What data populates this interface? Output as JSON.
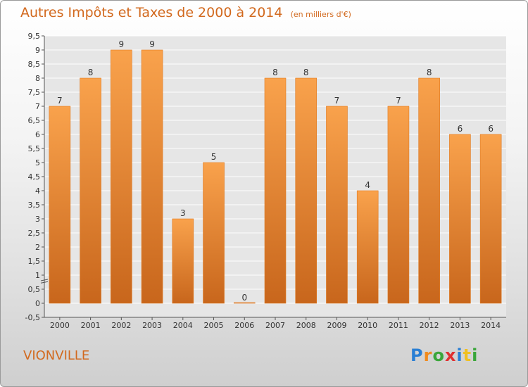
{
  "chart_data": {
    "type": "bar",
    "title": "Autres Impôts et Taxes de 2000 à 2014",
    "unit_note": "(en milliers d'€)",
    "categories": [
      "2000",
      "2001",
      "2002",
      "2003",
      "2004",
      "2005",
      "2006",
      "2007",
      "2008",
      "2009",
      "2010",
      "2011",
      "2012",
      "2013",
      "2014"
    ],
    "values": [
      7,
      8,
      9,
      9,
      3,
      5,
      0,
      8,
      8,
      7,
      4,
      7,
      8,
      6,
      6
    ],
    "ylim": [
      -0.5,
      9.5
    ],
    "yticks": [
      "-0,5",
      "0",
      "0,5",
      "1",
      "1,5",
      "2",
      "2,5",
      "3",
      "3,5",
      "4",
      "4,5",
      "5",
      "5,5",
      "6",
      "6,5",
      "7",
      "7,5",
      "8",
      "8,5",
      "9",
      "9,5"
    ],
    "grid": true,
    "bar_color": "#f0913a"
  },
  "footer": {
    "commune": "VIONVILLE",
    "logo_letters": [
      {
        "ch": "P",
        "color": "#2a7fd4"
      },
      {
        "ch": "r",
        "color": "#f08a1d"
      },
      {
        "ch": "o",
        "color": "#3aa63a"
      },
      {
        "ch": "x",
        "color": "#e03030"
      },
      {
        "ch": "i",
        "color": "#2a7fd4"
      },
      {
        "ch": "t",
        "color": "#f0c020"
      },
      {
        "ch": "i",
        "color": "#3aa63a"
      }
    ]
  }
}
